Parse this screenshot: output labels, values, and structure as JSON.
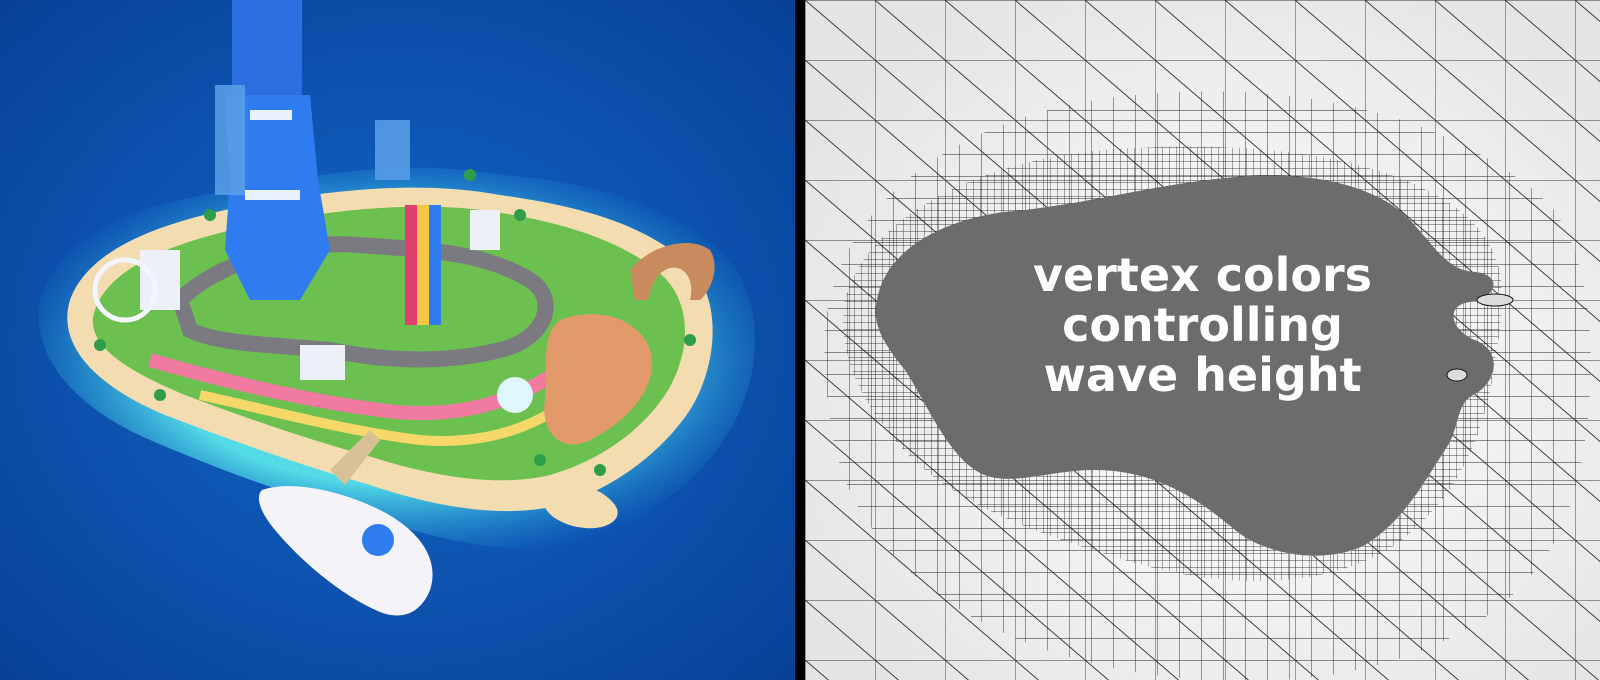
{
  "left_panel": {
    "ocean_colors": {
      "deep": "#0a4fa8",
      "shallow": "#47d4e8",
      "sand": "#f2dcb0"
    },
    "island_elements": [
      "blue-tower",
      "racetrack",
      "ferris-wheel",
      "rock-arch",
      "cruise-ship",
      "palm-trees",
      "pier"
    ]
  },
  "right_panel": {
    "caption_lines": [
      "vertex colors",
      "controlling",
      "wave height"
    ],
    "fill_color": "#6c6c6c",
    "background_color": "#f2f2f2"
  }
}
